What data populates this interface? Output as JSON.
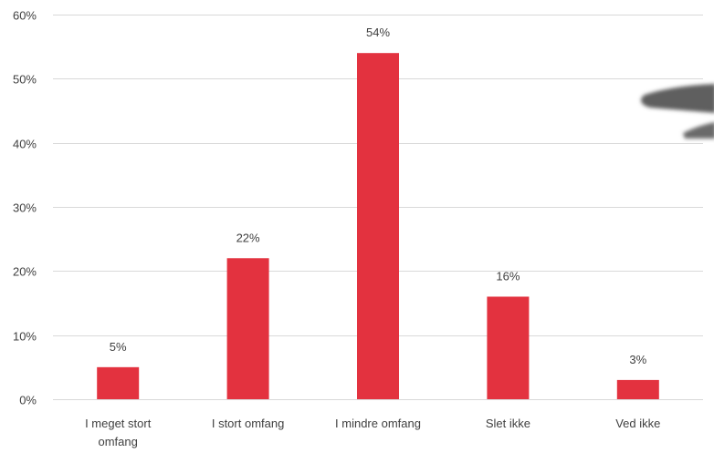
{
  "chart_data": {
    "type": "bar",
    "categories": [
      [
        "I meget stort",
        "omfang"
      ],
      [
        "I stort omfang"
      ],
      [
        "I mindre omfang"
      ],
      [
        "Slet ikke"
      ],
      [
        "Ved ikke"
      ]
    ],
    "values": [
      5,
      22,
      54,
      16,
      3
    ],
    "data_labels": [
      "5%",
      "22%",
      "54%",
      "16%",
      "3%"
    ],
    "ylim": [
      0,
      60
    ],
    "yticks": [
      0,
      10,
      20,
      30,
      40,
      50,
      60
    ],
    "ytick_labels": [
      "0%",
      "10%",
      "20%",
      "30%",
      "40%",
      "50%",
      "60%"
    ],
    "grid": true,
    "bar_color": "#e3323f",
    "grid_color": "#d9d9d9",
    "text_color": "#404040",
    "title": "",
    "xlabel": "",
    "ylabel": ""
  }
}
